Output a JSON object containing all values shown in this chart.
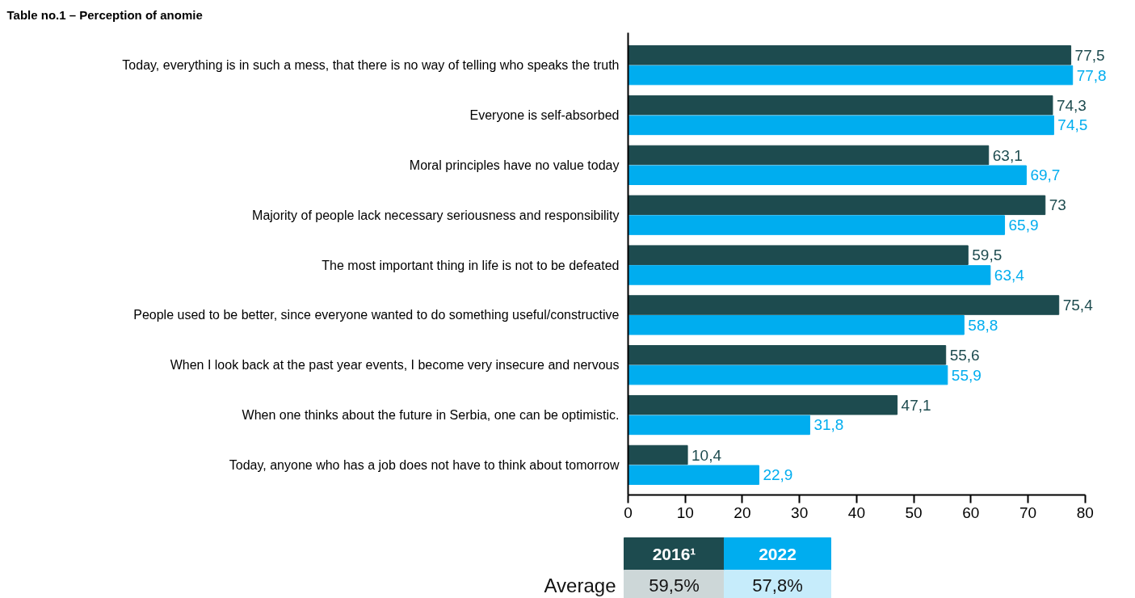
{
  "chart_data": {
    "type": "bar",
    "orientation": "horizontal",
    "title": "Table no.1 – Perception of anomie",
    "categories": [
      "Today, everything is in such a mess, that there is no way of telling who speaks the truth",
      "Everyone is self-absorbed",
      "Moral principles have no value today",
      "Majority of people lack necessary seriousness and responsibility",
      "The most important thing in life is not to be defeated",
      "People used to be better, since everyone wanted to do something useful/constructive",
      "When I look back at the past year events, I become very insecure and nervous",
      "When one thinks about the future in Serbia, one can be optimistic.",
      "Today, anyone who has a job does not have to think about tomorrow"
    ],
    "series": [
      {
        "name": "2016¹",
        "color": "#1d4b4f",
        "values": [
          77.5,
          74.3,
          63.1,
          73,
          59.5,
          75.4,
          55.6,
          47.1,
          10.4
        ],
        "value_labels": [
          "77,5",
          "74,3",
          "63,1",
          "73",
          "59,5",
          "75,4",
          "55,6",
          "47,1",
          "10,4"
        ]
      },
      {
        "name": "2022",
        "color": "#00adef",
        "values": [
          77.8,
          74.5,
          69.7,
          65.9,
          63.4,
          58.8,
          55.9,
          31.8,
          22.9
        ],
        "value_labels": [
          "77,8",
          "74,5",
          "69,7",
          "65,9",
          "63,4",
          "58,8",
          "55,9",
          "31,8",
          "22,9"
        ]
      }
    ],
    "xlim": [
      0,
      80
    ],
    "xticks": [
      0,
      10,
      20,
      30,
      40,
      50,
      60,
      70,
      80
    ],
    "grid": false,
    "legend": "bottom",
    "annotations": [
      "Average",
      "59,5%",
      "57,8%"
    ]
  }
}
